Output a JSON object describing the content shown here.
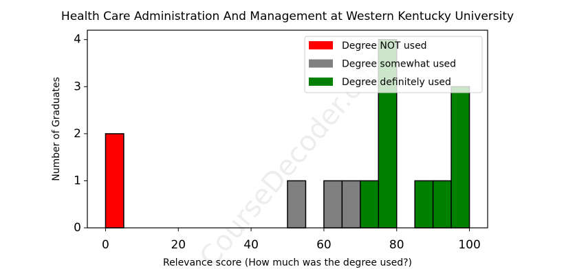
{
  "chart_data": {
    "type": "histogram",
    "title": "Health Care Administration And Management at Western Kentucky University",
    "x_label": "Relevance score (How much was the degree used?)",
    "y_label": "Number of Graduates",
    "watermark": "CourseDecoder.com",
    "bins": [
      0,
      5,
      10,
      15,
      20,
      25,
      30,
      35,
      40,
      45,
      50,
      55,
      60,
      65,
      70,
      75,
      80,
      85,
      90,
      95,
      100
    ],
    "series": [
      {
        "name": "Degree NOT used",
        "color": "#ff0000",
        "values": [
          2,
          0,
          0,
          0,
          0,
          0,
          0,
          0,
          0,
          0,
          0,
          0,
          0,
          0,
          0,
          0,
          0,
          0,
          0,
          0
        ]
      },
      {
        "name": "Degree somewhat used",
        "color": "#808080",
        "values": [
          0,
          0,
          0,
          0,
          0,
          0,
          0,
          0,
          0,
          0,
          1,
          0,
          1,
          1,
          0,
          0,
          0,
          0,
          0,
          0
        ]
      },
      {
        "name": "Degree definitely used",
        "color": "#008000",
        "values": [
          0,
          0,
          0,
          0,
          0,
          0,
          0,
          0,
          0,
          0,
          0,
          0,
          0,
          0,
          1,
          4,
          0,
          1,
          1,
          3
        ]
      }
    ],
    "xlim": [
      -5,
      105
    ],
    "ylim": [
      0,
      4.2
    ],
    "xticks": [
      0,
      20,
      40,
      60,
      80,
      100
    ],
    "yticks": [
      0,
      1,
      2,
      3,
      4
    ],
    "legend": "upper right"
  }
}
